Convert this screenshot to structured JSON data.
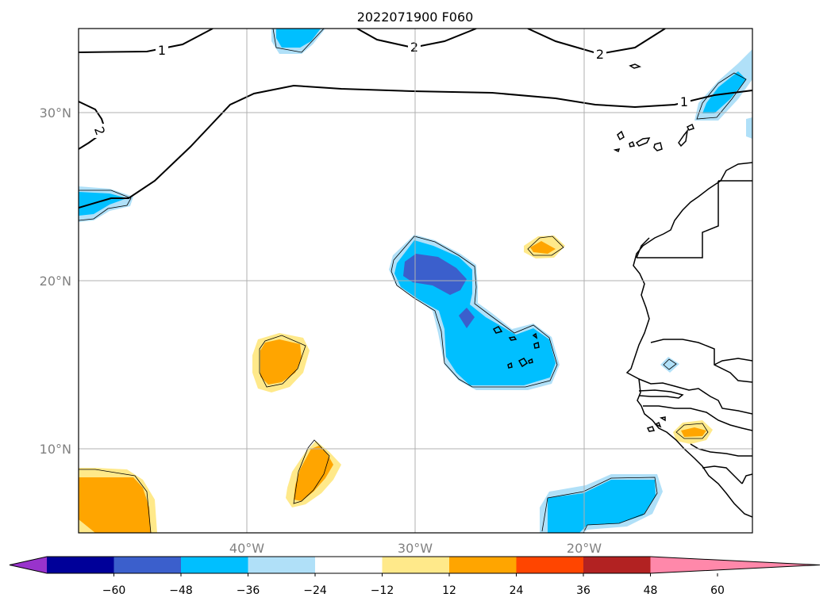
{
  "title": "2022071900 F060",
  "map": {
    "lon_range": [
      -50,
      -10
    ],
    "lat_range": [
      5,
      35
    ],
    "lon_ticks": [
      {
        "value": -40,
        "label": "40°W"
      },
      {
        "value": -30,
        "label": "30°W"
      },
      {
        "value": -20,
        "label": "20°W"
      }
    ],
    "lat_ticks": [
      {
        "value": 10,
        "label": "10°N"
      },
      {
        "value": 20,
        "label": "20°N"
      },
      {
        "value": 30,
        "label": "30°N"
      }
    ],
    "grid": true,
    "contour_labels": [
      "1",
      "2",
      "2",
      "1",
      "2"
    ]
  },
  "colorbar": {
    "orientation": "horizontal",
    "position": "bottom",
    "extend": "both",
    "levels": [
      -60,
      -48,
      -36,
      -24,
      -12,
      12,
      24,
      36,
      48,
      60
    ],
    "tick_labels": [
      "−60",
      "−48",
      "−36",
      "−24",
      "−12",
      "12",
      "24",
      "36",
      "48",
      "60"
    ],
    "colors": [
      "#9933cc",
      "#000099",
      "#3b5fcc",
      "#00bfff",
      "#b0e0f8",
      "#ffffff",
      "#ffe98a",
      "#ffa500",
      "#ff4500",
      "#b22222",
      "#ff88aa"
    ]
  },
  "fill_colors": {
    "m24_36": "#00bfff",
    "m12_24": "#b0e0f8",
    "m36_48": "#3b5fcc",
    "p12_24": "#ffe98a",
    "p24_36": "#ffa500"
  }
}
